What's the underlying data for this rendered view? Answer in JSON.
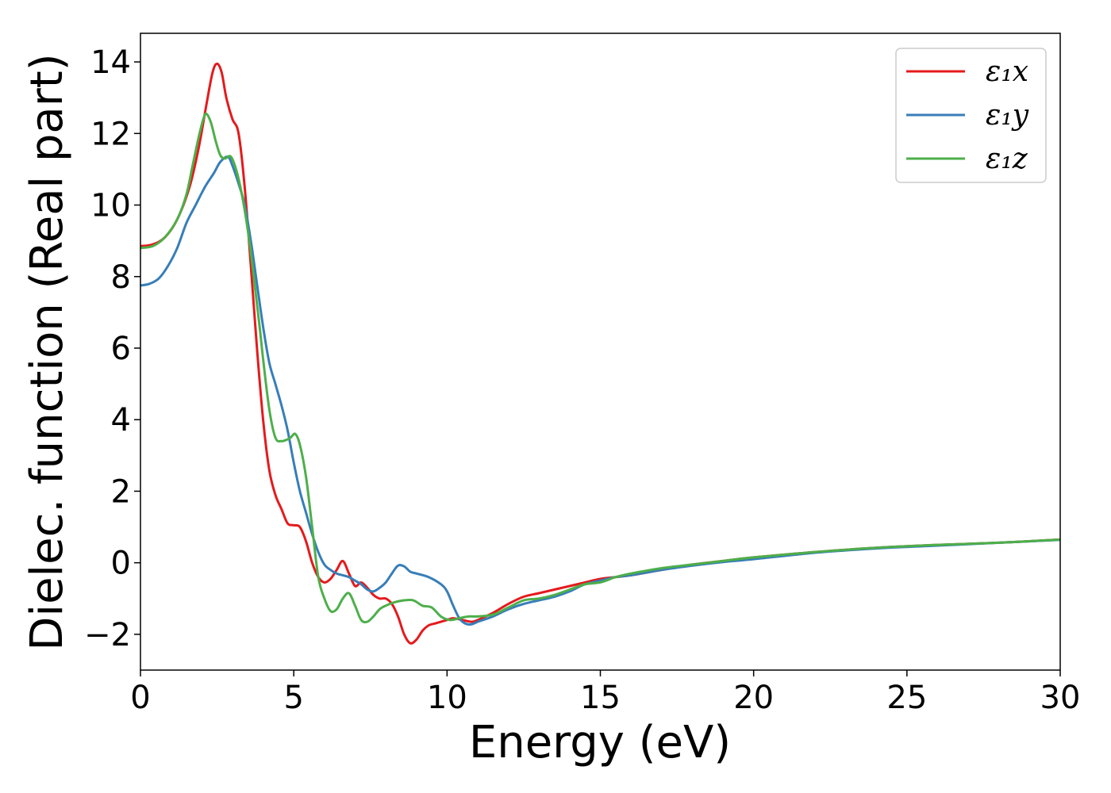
{
  "chart_data": {
    "type": "line",
    "title": "",
    "xlabel": "Energy (eV)",
    "ylabel": "Dielec. function (Real part)",
    "xlim": [
      0,
      30
    ],
    "ylim": [
      -3.0,
      14.8
    ],
    "x_ticks": [
      0,
      5,
      10,
      15,
      20,
      25,
      30
    ],
    "x_tick_labels": [
      "0",
      "5",
      "10",
      "15",
      "20",
      "25",
      "30"
    ],
    "y_ticks": [
      -2,
      0,
      2,
      4,
      6,
      8,
      10,
      12,
      14
    ],
    "y_tick_labels": [
      "−2",
      "0",
      "2",
      "4",
      "6",
      "8",
      "10",
      "12",
      "14"
    ],
    "grid": false,
    "legend": "top-right",
    "series": [
      {
        "name": "ε₁x",
        "color": "#e41a1c",
        "points": [
          [
            0,
            8.85
          ],
          [
            0.4,
            8.9
          ],
          [
            0.8,
            9.1
          ],
          [
            1.2,
            9.6
          ],
          [
            1.6,
            10.5
          ],
          [
            1.9,
            11.6
          ],
          [
            2.15,
            12.8
          ],
          [
            2.35,
            13.7
          ],
          [
            2.5,
            13.95
          ],
          [
            2.65,
            13.7
          ],
          [
            2.8,
            13.0
          ],
          [
            3.0,
            12.4
          ],
          [
            3.2,
            12.0
          ],
          [
            3.4,
            10.5
          ],
          [
            3.6,
            8.3
          ],
          [
            3.8,
            6.0
          ],
          [
            4.0,
            4.0
          ],
          [
            4.2,
            2.6
          ],
          [
            4.4,
            1.9
          ],
          [
            4.6,
            1.5
          ],
          [
            4.8,
            1.1
          ],
          [
            5.0,
            1.05
          ],
          [
            5.2,
            1.0
          ],
          [
            5.4,
            0.6
          ],
          [
            5.6,
            0.0
          ],
          [
            5.8,
            -0.4
          ],
          [
            6.0,
            -0.55
          ],
          [
            6.2,
            -0.45
          ],
          [
            6.4,
            -0.2
          ],
          [
            6.6,
            0.05
          ],
          [
            6.8,
            -0.3
          ],
          [
            7.0,
            -0.65
          ],
          [
            7.2,
            -0.55
          ],
          [
            7.4,
            -0.7
          ],
          [
            7.6,
            -0.9
          ],
          [
            7.8,
            -1.0
          ],
          [
            8.0,
            -1.0
          ],
          [
            8.2,
            -1.15
          ],
          [
            8.4,
            -1.5
          ],
          [
            8.6,
            -2.0
          ],
          [
            8.8,
            -2.25
          ],
          [
            9.0,
            -2.15
          ],
          [
            9.2,
            -1.9
          ],
          [
            9.4,
            -1.75
          ],
          [
            9.6,
            -1.7
          ],
          [
            9.8,
            -1.65
          ],
          [
            10.0,
            -1.6
          ],
          [
            10.2,
            -1.55
          ],
          [
            10.5,
            -1.6
          ],
          [
            10.8,
            -1.65
          ],
          [
            11.0,
            -1.6
          ],
          [
            11.5,
            -1.4
          ],
          [
            12.0,
            -1.15
          ],
          [
            12.5,
            -0.95
          ],
          [
            13.0,
            -0.85
          ],
          [
            13.5,
            -0.75
          ],
          [
            14.0,
            -0.65
          ],
          [
            14.5,
            -0.55
          ],
          [
            15.0,
            -0.45
          ],
          [
            15.5,
            -0.4
          ],
          [
            16.0,
            -0.35
          ],
          [
            17.0,
            -0.2
          ],
          [
            18.0,
            -0.05
          ],
          [
            19.0,
            0.05
          ],
          [
            20.0,
            0.15
          ],
          [
            22.0,
            0.3
          ],
          [
            24.0,
            0.42
          ],
          [
            26.0,
            0.5
          ],
          [
            28.0,
            0.56
          ],
          [
            30.0,
            0.65
          ]
        ]
      },
      {
        "name": "ε₁y",
        "color": "#377eb8",
        "points": [
          [
            0,
            7.75
          ],
          [
            0.3,
            7.8
          ],
          [
            0.6,
            7.95
          ],
          [
            0.9,
            8.3
          ],
          [
            1.2,
            8.8
          ],
          [
            1.5,
            9.5
          ],
          [
            1.8,
            10.0
          ],
          [
            2.1,
            10.5
          ],
          [
            2.4,
            10.9
          ],
          [
            2.6,
            11.2
          ],
          [
            2.85,
            11.35
          ],
          [
            3.0,
            11.1
          ],
          [
            3.2,
            10.6
          ],
          [
            3.4,
            10.0
          ],
          [
            3.6,
            9.0
          ],
          [
            3.8,
            7.8
          ],
          [
            4.0,
            6.6
          ],
          [
            4.2,
            5.6
          ],
          [
            4.4,
            5.0
          ],
          [
            4.6,
            4.4
          ],
          [
            4.8,
            3.7
          ],
          [
            5.0,
            2.8
          ],
          [
            5.2,
            2.0
          ],
          [
            5.4,
            1.4
          ],
          [
            5.6,
            0.8
          ],
          [
            5.8,
            0.3
          ],
          [
            6.0,
            -0.05
          ],
          [
            6.2,
            -0.2
          ],
          [
            6.4,
            -0.3
          ],
          [
            6.6,
            -0.35
          ],
          [
            6.8,
            -0.4
          ],
          [
            7.0,
            -0.5
          ],
          [
            7.2,
            -0.6
          ],
          [
            7.4,
            -0.75
          ],
          [
            7.6,
            -0.8
          ],
          [
            7.8,
            -0.7
          ],
          [
            8.0,
            -0.55
          ],
          [
            8.2,
            -0.3
          ],
          [
            8.4,
            -0.08
          ],
          [
            8.6,
            -0.1
          ],
          [
            8.8,
            -0.25
          ],
          [
            9.0,
            -0.3
          ],
          [
            9.4,
            -0.4
          ],
          [
            9.8,
            -0.6
          ],
          [
            10.0,
            -0.8
          ],
          [
            10.2,
            -1.2
          ],
          [
            10.4,
            -1.55
          ],
          [
            10.6,
            -1.7
          ],
          [
            10.8,
            -1.72
          ],
          [
            11.0,
            -1.65
          ],
          [
            11.5,
            -1.5
          ],
          [
            12.0,
            -1.3
          ],
          [
            12.5,
            -1.15
          ],
          [
            13.0,
            -1.05
          ],
          [
            13.5,
            -0.95
          ],
          [
            14.0,
            -0.8
          ],
          [
            14.5,
            -0.6
          ],
          [
            15.0,
            -0.5
          ],
          [
            15.5,
            -0.4
          ],
          [
            16.0,
            -0.35
          ],
          [
            17.0,
            -0.2
          ],
          [
            18.0,
            -0.08
          ],
          [
            19.0,
            0.02
          ],
          [
            20.0,
            0.1
          ],
          [
            22.0,
            0.28
          ],
          [
            24.0,
            0.4
          ],
          [
            26.0,
            0.48
          ],
          [
            28.0,
            0.56
          ],
          [
            30.0,
            0.64
          ]
        ]
      },
      {
        "name": "ε₁z",
        "color": "#4daf4a",
        "points": [
          [
            0,
            8.8
          ],
          [
            0.4,
            8.85
          ],
          [
            0.8,
            9.1
          ],
          [
            1.2,
            9.6
          ],
          [
            1.5,
            10.3
          ],
          [
            1.7,
            11.1
          ],
          [
            1.9,
            11.9
          ],
          [
            2.05,
            12.4
          ],
          [
            2.15,
            12.55
          ],
          [
            2.3,
            12.3
          ],
          [
            2.45,
            11.8
          ],
          [
            2.6,
            11.4
          ],
          [
            2.75,
            11.3
          ],
          [
            2.95,
            11.35
          ],
          [
            3.15,
            10.9
          ],
          [
            3.35,
            10.1
          ],
          [
            3.55,
            9.0
          ],
          [
            3.75,
            7.6
          ],
          [
            3.9,
            6.5
          ],
          [
            4.0,
            5.7
          ],
          [
            4.2,
            4.3
          ],
          [
            4.4,
            3.5
          ],
          [
            4.6,
            3.4
          ],
          [
            4.8,
            3.45
          ],
          [
            4.9,
            3.5
          ],
          [
            5.05,
            3.6
          ],
          [
            5.2,
            3.3
          ],
          [
            5.4,
            2.4
          ],
          [
            5.6,
            1.0
          ],
          [
            5.8,
            -0.4
          ],
          [
            6.0,
            -1.0
          ],
          [
            6.2,
            -1.35
          ],
          [
            6.4,
            -1.3
          ],
          [
            6.6,
            -1.0
          ],
          [
            6.8,
            -0.85
          ],
          [
            7.0,
            -1.2
          ],
          [
            7.2,
            -1.6
          ],
          [
            7.4,
            -1.65
          ],
          [
            7.6,
            -1.5
          ],
          [
            7.8,
            -1.3
          ],
          [
            8.0,
            -1.2
          ],
          [
            8.3,
            -1.1
          ],
          [
            8.6,
            -1.05
          ],
          [
            8.9,
            -1.05
          ],
          [
            9.2,
            -1.2
          ],
          [
            9.5,
            -1.25
          ],
          [
            9.8,
            -1.5
          ],
          [
            10.1,
            -1.6
          ],
          [
            10.4,
            -1.55
          ],
          [
            10.7,
            -1.5
          ],
          [
            11.0,
            -1.5
          ],
          [
            11.5,
            -1.45
          ],
          [
            12.0,
            -1.25
          ],
          [
            12.5,
            -1.05
          ],
          [
            13.0,
            -1.0
          ],
          [
            13.5,
            -0.9
          ],
          [
            14.0,
            -0.75
          ],
          [
            14.5,
            -0.6
          ],
          [
            15.0,
            -0.55
          ],
          [
            15.5,
            -0.4
          ],
          [
            16.0,
            -0.3
          ],
          [
            17.0,
            -0.15
          ],
          [
            18.0,
            -0.05
          ],
          [
            19.0,
            0.05
          ],
          [
            20.0,
            0.15
          ],
          [
            22.0,
            0.3
          ],
          [
            24.0,
            0.42
          ],
          [
            26.0,
            0.5
          ],
          [
            28.0,
            0.56
          ],
          [
            30.0,
            0.65
          ]
        ]
      }
    ]
  }
}
